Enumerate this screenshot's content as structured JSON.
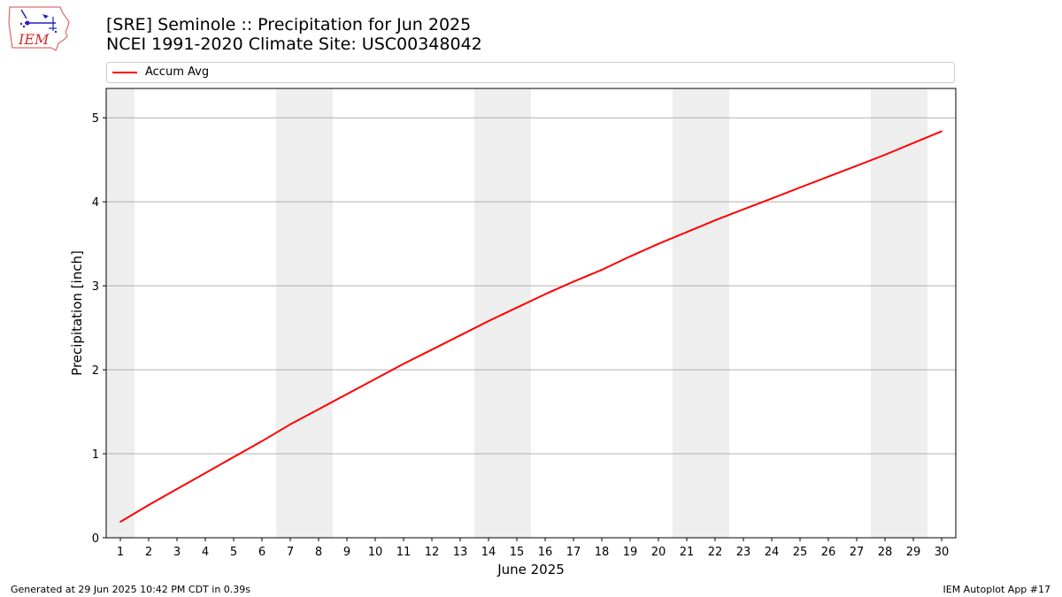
{
  "header": {
    "title_line1": "[SRE] Seminole :: Precipitation for Jun 2025",
    "title_line2": "NCEI 1991-2020 Climate Site: USC00348042",
    "logo_text": "IEM"
  },
  "footer": {
    "generated": "Generated at 29 Jun 2025 10:42 PM CDT in 0.39s",
    "app": "IEM Autoplot App #17"
  },
  "colors": {
    "series": "#ff0000",
    "weekend_shade": "#eeeeee",
    "grid": "#b0b0b0"
  },
  "chart_data": {
    "type": "line",
    "title": "[SRE] Seminole :: Precipitation for Jun 2025",
    "subtitle": "NCEI 1991-2020 Climate Site: USC00348042",
    "xlabel": "June 2025",
    "ylabel": "Precipitation [inch]",
    "xlim": [
      0.5,
      30.5
    ],
    "ylim": [
      0,
      5.35
    ],
    "x_ticks": [
      1,
      2,
      3,
      4,
      5,
      6,
      7,
      8,
      9,
      10,
      11,
      12,
      13,
      14,
      15,
      16,
      17,
      18,
      19,
      20,
      21,
      22,
      23,
      24,
      25,
      26,
      27,
      28,
      29,
      30
    ],
    "y_ticks": [
      0,
      1,
      2,
      3,
      4,
      5
    ],
    "grid": "horizontal",
    "legend_position": "top",
    "weekend_days": [
      1,
      7,
      8,
      14,
      15,
      21,
      22,
      28,
      29
    ],
    "series": [
      {
        "name": "Accum Avg",
        "color": "#ff0000",
        "x": [
          1,
          2,
          3,
          4,
          5,
          6,
          7,
          8,
          9,
          10,
          11,
          12,
          13,
          14,
          15,
          16,
          17,
          18,
          19,
          20,
          21,
          22,
          23,
          24,
          25,
          26,
          27,
          28,
          29,
          30
        ],
        "values": [
          0.19,
          0.39,
          0.58,
          0.77,
          0.96,
          1.15,
          1.35,
          1.53,
          1.71,
          1.89,
          2.07,
          2.24,
          2.41,
          2.58,
          2.74,
          2.9,
          3.05,
          3.19,
          3.35,
          3.5,
          3.64,
          3.78,
          3.91,
          4.04,
          4.17,
          4.3,
          4.43,
          4.56,
          4.7,
          4.84
        ]
      }
    ]
  }
}
